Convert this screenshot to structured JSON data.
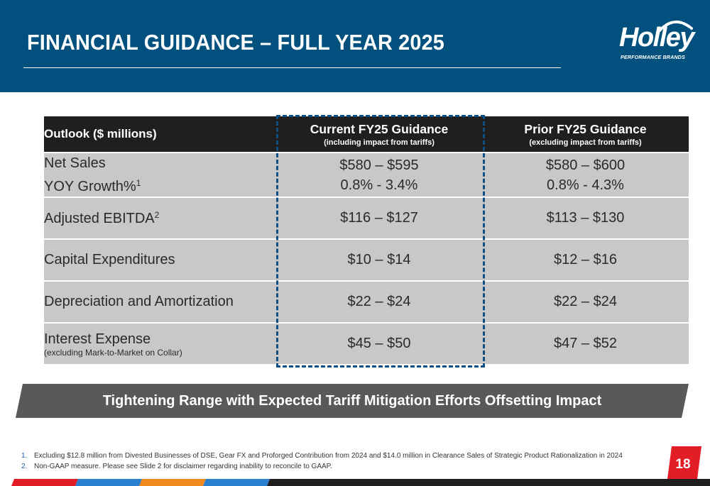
{
  "header": {
    "title": "FINANCIAL GUIDANCE – FULL YEAR 2025",
    "logo_text": "Holley",
    "logo_subtext": "PERFORMANCE BRANDS"
  },
  "table": {
    "columns": {
      "label": "Outlook ($ millions)",
      "current_title": "Current FY25 Guidance",
      "current_note": "(including impact from tariffs)",
      "prior_title": "Prior FY25 Guidance",
      "prior_note": "(excluding impact from tariffs)"
    },
    "rows": [
      {
        "label": "Net Sales",
        "label2": "YOY Growth%",
        "label2_sup": "1",
        "current": "$580 – $595",
        "current2": "0.8% - 3.4%",
        "prior": "$580 – $600",
        "prior2": "0.8% - 4.3%"
      },
      {
        "label": "Adjusted EBITDA",
        "label_sup": "2",
        "current": "$116 – $127",
        "prior": "$113 – $130"
      },
      {
        "label": "Capital Expenditures",
        "current": "$10 – $14",
        "prior": "$12 – $16"
      },
      {
        "label": "Depreciation and Amortization",
        "current": "$22 – $24",
        "prior": "$22 – $24"
      },
      {
        "label": "Interest Expense",
        "note": "(excluding Mark-to-Market on Collar)",
        "current": "$45 – $50",
        "prior": "$47 – $52"
      }
    ]
  },
  "banner": {
    "text": "Tightening Range with Expected Tariff Mitigation Efforts Offsetting Impact"
  },
  "footnotes": [
    {
      "num": "1.",
      "text": "Excluding $12.8 million from Divested Businesses of DSE, Gear FX and Proforged Contribution from 2024 and $14.0 million in Clearance Sales of Strategic Product Rationalization in 2024"
    },
    {
      "num": "2.",
      "text": "Non-GAAP measure. Please see Slide 2 for disclaimer regarding inability to reconcile to GAAP."
    }
  ],
  "page_number": "18",
  "colors": {
    "header_bg": "#01507d",
    "table_header_bg": "#1f1f1f",
    "table_row_bg": "#c8c8c8",
    "highlight_dash": "#0b4f85",
    "banner_bg": "#595959",
    "accent_red": "#e31d25",
    "accent_blue": "#2a7fcf",
    "accent_orange": "#f08a1c",
    "accent_dark": "#1e1e1e"
  }
}
